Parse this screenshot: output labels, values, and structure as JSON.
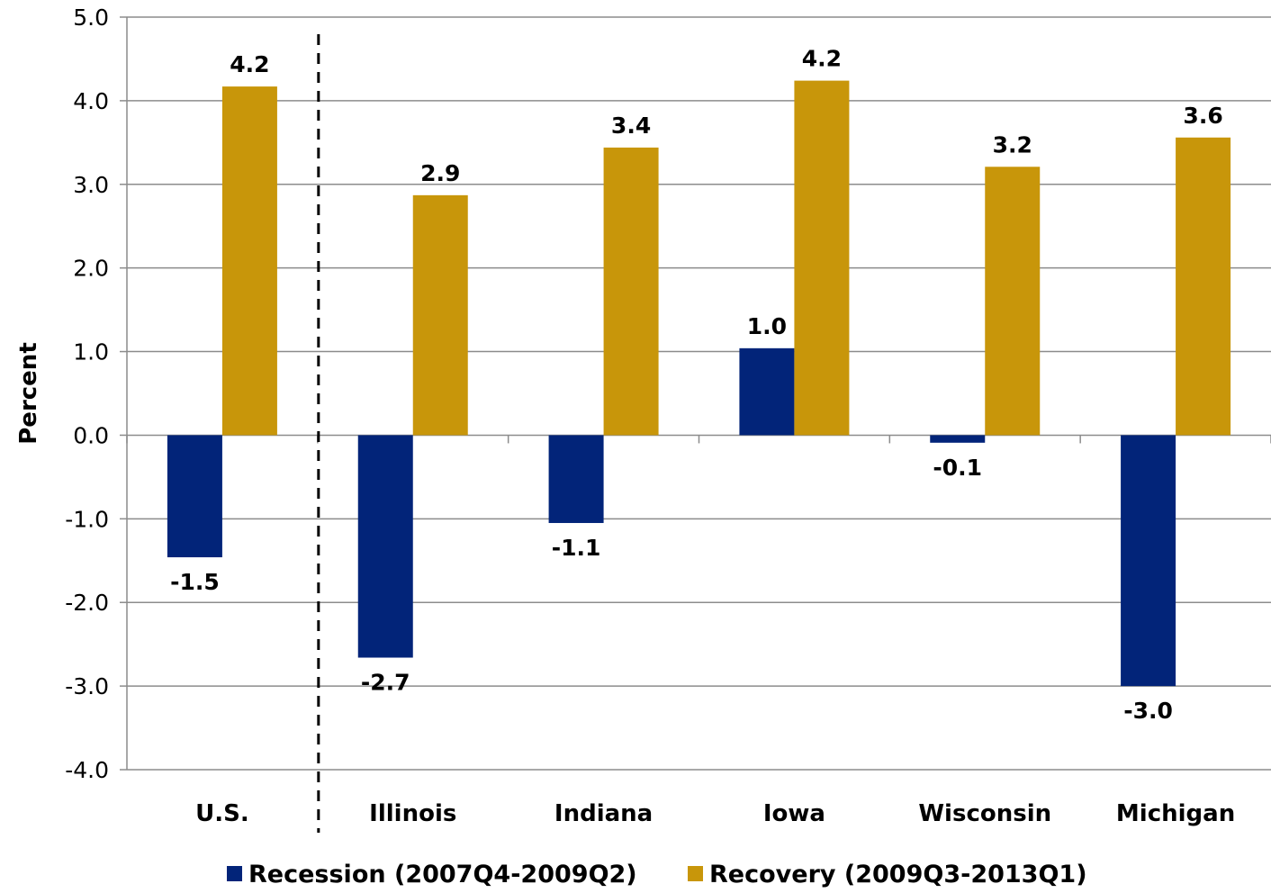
{
  "chart_data": {
    "type": "bar",
    "title": "",
    "ylabel": "Percent",
    "xlabel": "",
    "ylim": [
      -4.0,
      5.0
    ],
    "yticks": [
      "5.0",
      "4.0",
      "3.0",
      "2.0",
      "1.0",
      "0.0",
      "-1.0",
      "-2.0",
      "-3.0",
      "-4.0"
    ],
    "ytick_values": [
      5,
      4,
      3,
      2,
      1,
      0,
      -1,
      -2,
      -3,
      -4
    ],
    "categories": [
      "U.S.",
      "Illinois",
      "Indiana",
      "Iowa",
      "Wisconsin",
      "Michigan"
    ],
    "series": [
      {
        "name": "Recession (2007Q4-2009Q2)",
        "color": "#022479",
        "values": [
          -1.46,
          -2.66,
          -1.05,
          1.04,
          -0.09,
          -3.0
        ],
        "labels": [
          "-1.5",
          "-2.7",
          "-1.1",
          "1.0",
          "-0.1",
          "-3.0"
        ]
      },
      {
        "name": "Recovery (2009Q3-2013Q1)",
        "color": "#C8960A",
        "values": [
          4.17,
          2.87,
          3.44,
          4.24,
          3.21,
          3.56
        ],
        "labels": [
          "4.2",
          "2.9",
          "3.4",
          "4.2",
          "3.2",
          "3.6"
        ]
      }
    ],
    "grid": true,
    "separator_after_category": "U.S.",
    "legend_position": "bottom"
  }
}
